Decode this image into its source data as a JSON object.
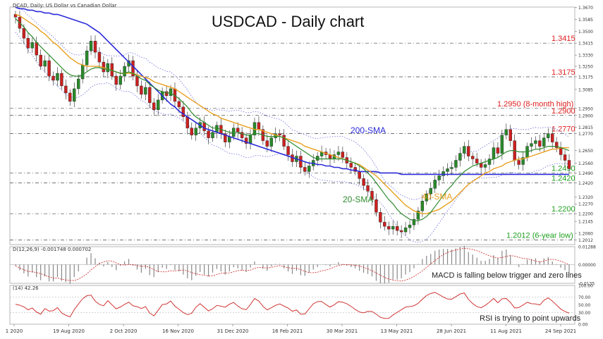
{
  "chart_data": {
    "type": "line",
    "title": "USDCAD - Daily chart",
    "header_label": "DCAD, Daily:  US Dollar vs Canadian Dollar",
    "x_ticks": [
      "1 2020",
      "19 Aug 2020",
      "2 Oct 2020",
      "16 Nov 2020",
      "31 Dec 2020",
      "16 Feb 2021",
      "30 Mar 2021",
      "13 May 2021",
      "28 Jun 2021",
      "11 Aug 2021",
      "24 Sep 2021"
    ],
    "price_axis": {
      "ylim": [
        1.198,
        1.3672
      ],
      "ticks": [
        "1.3670",
        "1.3585",
        "1.3500",
        "1.3415",
        "1.3330",
        "1.3250",
        "1.3175",
        "1.3085",
        "1.2950",
        "1.2900",
        "1.2815",
        "1.2770",
        "1.2650",
        "1.2560",
        "1.2490",
        "1.2420",
        "1.2320",
        "1.2270",
        "1.2200",
        "1.2145",
        "1.2060",
        "1.2012"
      ]
    },
    "levels": [
      {
        "value": 1.3415,
        "label": "1.3415"
      },
      {
        "value": 1.3175,
        "label": "1.3175"
      },
      {
        "value": 1.295,
        "label": "1.2950 (8-month high)"
      },
      {
        "value": 1.29,
        "label": "1.2900"
      },
      {
        "value": 1.277,
        "label": "1.2770"
      },
      {
        "value": 1.249,
        "label": "1.2490"
      },
      {
        "value": 1.242,
        "label": "1.2420"
      },
      {
        "value": 1.22,
        "label": "1.2200"
      },
      {
        "value": 1.2012,
        "label": "1.2012 (6-year low)"
      }
    ],
    "price_series": {
      "close": [
        1.36,
        1.352,
        1.345,
        1.338,
        1.342,
        1.333,
        1.325,
        1.329,
        1.318,
        1.315,
        1.32,
        1.311,
        1.306,
        1.3,
        1.309,
        1.316,
        1.326,
        1.336,
        1.343,
        1.335,
        1.328,
        1.321,
        1.327,
        1.318,
        1.312,
        1.318,
        1.325,
        1.329,
        1.318,
        1.311,
        1.305,
        1.31,
        1.299,
        1.294,
        1.301,
        1.307,
        1.304,
        1.309,
        1.3,
        1.296,
        1.289,
        1.281,
        1.276,
        1.281,
        1.285,
        1.279,
        1.274,
        1.278,
        1.283,
        1.277,
        1.271,
        1.275,
        1.281,
        1.278,
        1.274,
        1.27,
        1.276,
        1.285,
        1.28,
        1.272,
        1.268,
        1.274,
        1.277,
        1.276,
        1.268,
        1.262,
        1.257,
        1.261,
        1.253,
        1.25,
        1.254,
        1.258,
        1.261,
        1.264,
        1.262,
        1.259,
        1.262,
        1.264,
        1.26,
        1.256,
        1.253,
        1.25,
        1.245,
        1.24,
        1.236,
        1.23,
        1.221,
        1.214,
        1.211,
        1.209,
        1.211,
        1.208,
        1.207,
        1.21,
        1.212,
        1.216,
        1.222,
        1.229,
        1.234,
        1.238,
        1.244,
        1.247,
        1.25,
        1.252,
        1.253,
        1.258,
        1.263,
        1.268,
        1.261,
        1.259,
        1.256,
        1.253,
        1.255,
        1.259,
        1.267,
        1.263,
        1.276,
        1.28,
        1.272,
        1.258,
        1.255,
        1.26,
        1.268,
        1.27,
        1.272,
        1.268,
        1.274,
        1.277,
        1.271,
        1.267,
        1.262,
        1.258,
        1.252
      ],
      "sma20": [
        1.359,
        1.356,
        1.353,
        1.349,
        1.346,
        1.342,
        1.339,
        1.336,
        1.333,
        1.33,
        1.327,
        1.324,
        1.321,
        1.319,
        1.318,
        1.318,
        1.319,
        1.321,
        1.323,
        1.324,
        1.324,
        1.323,
        1.323,
        1.322,
        1.321,
        1.32,
        1.32,
        1.321,
        1.32,
        1.318,
        1.316,
        1.315,
        1.312,
        1.31,
        1.308,
        1.307,
        1.306,
        1.306,
        1.304,
        1.302,
        1.299,
        1.296,
        1.292,
        1.289,
        1.287,
        1.285,
        1.283,
        1.281,
        1.281,
        1.28,
        1.279,
        1.278,
        1.278,
        1.278,
        1.277,
        1.276,
        1.276,
        1.277,
        1.277,
        1.276,
        1.275,
        1.275,
        1.275,
        1.275,
        1.274,
        1.272,
        1.27,
        1.268,
        1.266,
        1.264,
        1.262,
        1.26,
        1.259,
        1.259,
        1.259,
        1.259,
        1.259,
        1.259,
        1.259,
        1.258,
        1.257,
        1.256,
        1.254,
        1.252,
        1.249,
        1.246,
        1.242,
        1.238,
        1.234,
        1.23,
        1.227,
        1.223,
        1.22,
        1.218,
        1.216,
        1.215,
        1.215,
        1.216,
        1.218,
        1.221,
        1.225,
        1.229,
        1.233,
        1.237,
        1.24,
        1.244,
        1.247,
        1.25,
        1.252,
        1.254,
        1.255,
        1.256,
        1.257,
        1.258,
        1.259,
        1.26,
        1.262,
        1.264,
        1.265,
        1.265,
        1.264,
        1.264,
        1.264,
        1.265,
        1.266,
        1.266,
        1.267,
        1.268,
        1.268,
        1.268,
        1.267,
        1.266,
        1.265
      ],
      "sma40": [
        1.362,
        1.361,
        1.359,
        1.357,
        1.355,
        1.353,
        1.35,
        1.348,
        1.345,
        1.342,
        1.34,
        1.337,
        1.334,
        1.331,
        1.329,
        1.327,
        1.326,
        1.325,
        1.325,
        1.325,
        1.325,
        1.324,
        1.323,
        1.322,
        1.321,
        1.32,
        1.32,
        1.32,
        1.32,
        1.319,
        1.318,
        1.317,
        1.316,
        1.314,
        1.313,
        1.312,
        1.311,
        1.31,
        1.309,
        1.307,
        1.305,
        1.303,
        1.301,
        1.299,
        1.297,
        1.295,
        1.293,
        1.291,
        1.29,
        1.288,
        1.287,
        1.286,
        1.285,
        1.284,
        1.283,
        1.282,
        1.281,
        1.28,
        1.28,
        1.279,
        1.278,
        1.277,
        1.276,
        1.275,
        1.274,
        1.273,
        1.272,
        1.271,
        1.27,
        1.268,
        1.267,
        1.266,
        1.265,
        1.264,
        1.263,
        1.262,
        1.261,
        1.26,
        1.259,
        1.258,
        1.257,
        1.256,
        1.255,
        1.253,
        1.251,
        1.249,
        1.247,
        1.244,
        1.241,
        1.238,
        1.235,
        1.232,
        1.229,
        1.226,
        1.224,
        1.222,
        1.221,
        1.22,
        1.22,
        1.221,
        1.222,
        1.223,
        1.225,
        1.227,
        1.229,
        1.232,
        1.235,
        1.238,
        1.241,
        1.243,
        1.245,
        1.247,
        1.249,
        1.25,
        1.252,
        1.253,
        1.254,
        1.256,
        1.257,
        1.258,
        1.259,
        1.259,
        1.26,
        1.261,
        1.262,
        1.263,
        1.264,
        1.265,
        1.266,
        1.266,
        1.267,
        1.267,
        1.267
      ],
      "sma200": [
        1.367,
        1.366,
        1.366,
        1.365,
        1.365,
        1.364,
        1.364,
        1.363,
        1.363,
        1.362,
        1.362,
        1.361,
        1.36,
        1.359,
        1.358,
        1.357,
        1.356,
        1.355,
        1.353,
        1.351,
        1.349,
        1.346,
        1.343,
        1.34,
        1.337,
        1.334,
        1.331,
        1.328,
        1.325,
        1.322,
        1.319,
        1.316,
        1.313,
        1.31,
        1.307,
        1.304,
        1.301,
        1.298,
        1.296,
        1.293,
        1.291,
        1.289,
        1.287,
        1.285,
        1.283,
        1.281,
        1.28,
        1.279,
        1.278,
        1.277,
        1.276,
        1.275,
        1.274,
        1.273,
        1.272,
        1.271,
        1.27,
        1.269,
        1.268,
        1.267,
        1.266,
        1.265,
        1.264,
        1.263,
        1.262,
        1.261,
        1.26,
        1.259,
        1.258,
        1.257,
        1.256,
        1.256,
        1.255,
        1.255,
        1.254,
        1.254,
        1.253,
        1.253,
        1.252,
        1.252,
        1.251,
        1.251,
        1.25,
        1.25,
        1.25,
        1.25,
        1.25,
        1.249,
        1.249,
        1.249,
        1.249,
        1.249,
        1.248,
        1.248,
        1.248,
        1.248,
        1.248,
        1.248,
        1.248,
        1.248,
        1.248,
        1.248,
        1.248,
        1.248,
        1.248,
        1.248,
        1.248,
        1.248,
        1.248,
        1.248,
        1.248,
        1.248,
        1.248,
        1.248,
        1.248,
        1.248,
        1.248,
        1.248,
        1.248,
        1.248,
        1.248,
        1.248,
        1.248,
        1.248,
        1.248,
        1.248,
        1.248,
        1.248,
        1.248,
        1.248,
        1.248,
        1.248,
        1.248
      ]
    },
    "series_labels": [
      {
        "name": "200-SMA",
        "color": "#2a2ad8"
      },
      {
        "name": "20-SMA",
        "color": "#2e8b2e"
      },
      {
        "name": "40-SMA",
        "color": "#e8a020"
      }
    ],
    "macd": {
      "header": "D(12,26,9) -0.001748 0.000702",
      "ticks": [
        "0.01288",
        "0.00000",
        "-0.0135"
      ],
      "ylim": [
        -0.0135,
        0.01288
      ],
      "annotation": "MACD is falling below trigger and zero lines"
    },
    "rsi": {
      "header": "(14) 42.26",
      "ticks": [
        "100.00",
        "70.00",
        "50.00",
        "30.00",
        "0.00"
      ],
      "ylim": [
        0,
        100
      ],
      "annotation": "RSI is trying to point upwards"
    },
    "colors": {
      "candle_up": "#2a8a2a",
      "candle_down": "#cc2020",
      "bands": "#5a5ad8",
      "levels_label": "#e02020",
      "support_label": "#20a020",
      "rsi": "#cc2020"
    }
  }
}
